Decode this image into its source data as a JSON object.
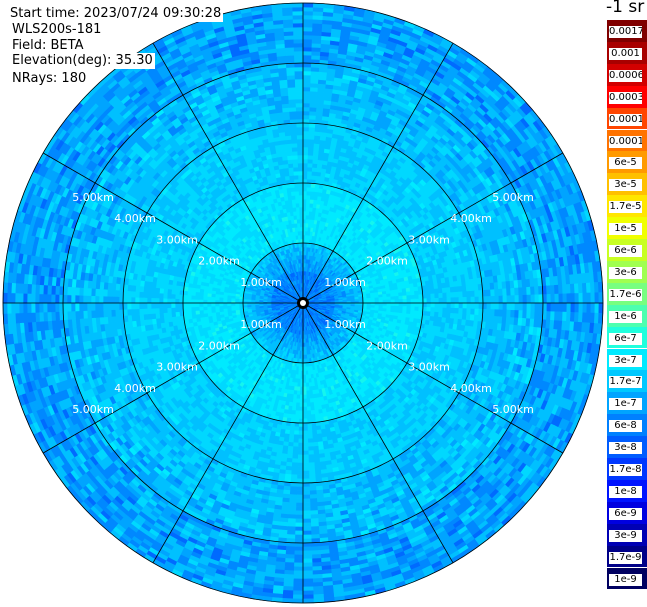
{
  "header": {
    "start_time": "Start time: 2023/07/24 09:30:28",
    "instrument": "WLS200s-181",
    "field": "Field: BETA",
    "elevation": "Elevation(deg): 35.30",
    "nrays": "NRays: 180"
  },
  "units": "-1 sr",
  "colorbar": {
    "labels": [
      "0.0017",
      "0.001",
      "0.0006",
      "0.0003",
      "0.00017",
      "0.0001",
      "6e-5",
      "3e-5",
      "1.7e-5",
      "1e-5",
      "6e-6",
      "3e-6",
      "1.7e-6",
      "1e-6",
      "6e-7",
      "3e-7",
      "1.7e-7",
      "1e-7",
      "6e-8",
      "3e-8",
      "1.7e-8",
      "1e-8",
      "6e-9",
      "3e-9",
      "1.7e-9",
      "1e-9"
    ],
    "colors": [
      "#800000",
      "#a80000",
      "#d20000",
      "#ff0000",
      "#ff4500",
      "#ff7300",
      "#ff9a00",
      "#ffc000",
      "#ffe600",
      "#f0ff00",
      "#c8ff22",
      "#a0ff50",
      "#78ff80",
      "#4dffb0",
      "#20ffdd",
      "#00eaff",
      "#00c8ff",
      "#00a4ff",
      "#0080ff",
      "#005cff",
      "#0038ff",
      "#0014ff",
      "#0000e0",
      "#0000b4",
      "#000088",
      "#000060"
    ]
  },
  "chart_data": {
    "type": "heatmap",
    "projection": "polar PPI",
    "field": "BETA",
    "elevation_deg": 35.3,
    "nrays": 180,
    "max_range_km": 5.0,
    "range_ring_labels": [
      "1.00km",
      "2.00km",
      "3.00km",
      "4.00km",
      "5.00km"
    ],
    "spoke_azimuths_deg": [
      0,
      30,
      60,
      90,
      120,
      150,
      180,
      210,
      240,
      270,
      300,
      330
    ],
    "color_scale": "log",
    "value_range": [
      1e-09,
      0.0017
    ],
    "typical_values": {
      "center_0_1km": "approx 1e-7 (deep blue)",
      "1_2km": "approx 3e-7 (aqua/cyan)",
      "2_4km": "approx 1e-7 to 3e-7 (light blue)",
      "4_5km": "approx 6e-8 to 1e-7 (blue, speckled)"
    }
  }
}
